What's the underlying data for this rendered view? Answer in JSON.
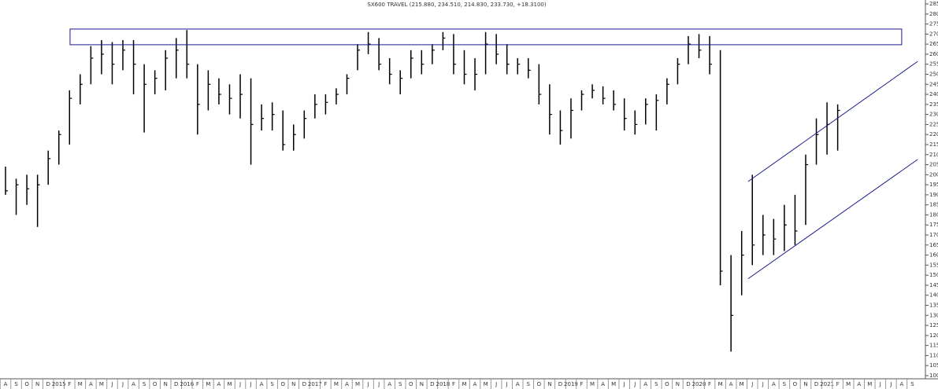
{
  "chart_data": {
    "type": "ohlc",
    "title": "SX600 TRAVEL (215.880, 234.510, 214.830, 233.730, +18.3100)",
    "categories": [
      "A",
      "S",
      "O",
      "N",
      "D",
      "2015",
      "F",
      "M",
      "A",
      "M",
      "J",
      "J",
      "A",
      "S",
      "O",
      "N",
      "D",
      "2016",
      "F",
      "M",
      "A",
      "M",
      "J",
      "J",
      "A",
      "S",
      "O",
      "N",
      "D",
      "2017",
      "F",
      "M",
      "A",
      "M",
      "J",
      "J",
      "A",
      "S",
      "O",
      "N",
      "D",
      "2018",
      "F",
      "M",
      "A",
      "M",
      "J",
      "J",
      "A",
      "S",
      "O",
      "N",
      "D",
      "2019",
      "F",
      "M",
      "A",
      "M",
      "J",
      "J",
      "A",
      "S",
      "O",
      "N",
      "D",
      "2020",
      "F",
      "M",
      "A",
      "M",
      "J",
      "J",
      "A",
      "S",
      "O",
      "N",
      "D",
      "2021",
      "F",
      "M",
      "A",
      "M",
      "J",
      "J",
      "A",
      "S"
    ],
    "high": [
      204,
      198,
      200,
      200,
      212,
      222,
      242,
      250,
      264,
      267,
      266,
      267,
      267,
      255,
      252,
      262,
      268,
      272,
      255,
      252,
      248,
      245,
      250,
      248,
      235,
      236,
      232,
      225,
      232,
      240,
      240,
      243,
      250,
      265,
      271,
      268,
      258,
      252,
      262,
      262,
      265,
      271,
      270,
      262,
      258,
      271,
      270,
      265,
      258,
      258,
      255,
      245,
      232,
      238,
      242,
      245,
      244,
      242,
      238,
      232,
      238,
      240,
      248,
      258,
      269,
      270,
      269,
      262,
      160,
      172,
      200,
      180,
      178,
      185,
      190,
      210,
      228,
      236,
      235,
      null,
      null,
      null,
      null,
      null,
      null,
      null
    ],
    "low": [
      190,
      180,
      185,
      174,
      195,
      205,
      215,
      235,
      245,
      250,
      245,
      252,
      240,
      221,
      240,
      242,
      248,
      248,
      220,
      232,
      235,
      230,
      228,
      205,
      222,
      222,
      212,
      212,
      218,
      228,
      230,
      235,
      240,
      252,
      260,
      252,
      245,
      240,
      248,
      250,
      255,
      262,
      250,
      245,
      242,
      250,
      255,
      250,
      250,
      248,
      235,
      220,
      215,
      218,
      232,
      238,
      235,
      232,
      222,
      220,
      225,
      222,
      235,
      245,
      255,
      258,
      250,
      145,
      112,
      140,
      155,
      160,
      160,
      162,
      165,
      175,
      205,
      210,
      212,
      null,
      null,
      null,
      null,
      null,
      null,
      null
    ],
    "close": [
      192,
      195,
      193,
      195,
      208,
      220,
      238,
      245,
      258,
      260,
      255,
      262,
      255,
      245,
      248,
      258,
      262,
      255,
      235,
      245,
      240,
      238,
      240,
      225,
      228,
      230,
      215,
      220,
      228,
      235,
      236,
      240,
      248,
      262,
      265,
      255,
      250,
      248,
      258,
      255,
      262,
      268,
      255,
      250,
      250,
      265,
      260,
      255,
      255,
      252,
      240,
      230,
      222,
      232,
      240,
      242,
      238,
      235,
      228,
      225,
      235,
      237,
      245,
      255,
      265,
      262,
      255,
      152,
      130,
      160,
      165,
      170,
      168,
      175,
      172,
      205,
      220,
      225,
      232,
      null,
      null,
      null,
      null,
      null,
      null,
      null
    ],
    "ylim": [
      100,
      285
    ],
    "yticks": [
      100,
      105,
      110,
      115,
      120,
      125,
      130,
      135,
      140,
      145,
      150,
      155,
      160,
      165,
      170,
      175,
      180,
      185,
      190,
      195,
      200,
      205,
      210,
      215,
      220,
      225,
      230,
      235,
      240,
      245,
      250,
      255,
      260,
      265,
      270,
      275,
      280,
      285
    ],
    "color": "#000000",
    "box": {
      "x": [
        6.05,
        84
      ],
      "y": [
        264.7,
        272.5
      ],
      "color": "#1a1a8c"
    },
    "channel": [
      {
        "x": [
          69.6,
          85.5
        ],
        "y": [
          196.6,
          256.4
        ]
      },
      {
        "x": [
          69.6,
          85.5
        ],
        "y": [
          148.2,
          207.6
        ]
      }
    ]
  }
}
